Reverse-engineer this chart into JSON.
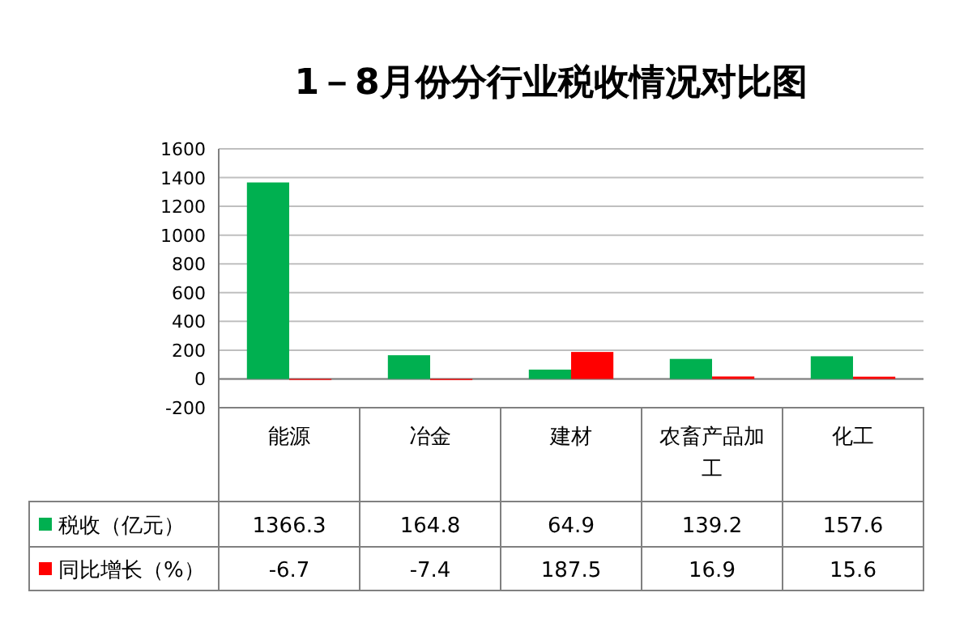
{
  "chart_data": {
    "type": "bar",
    "title": "1－8月份分行业税收情况对比图",
    "categories": [
      "能源",
      "冶金",
      "建材",
      "农畜产品加工",
      "化工"
    ],
    "series": [
      {
        "name": "税收（亿元）",
        "color": "#00b050",
        "values": [
          1366.3,
          164.8,
          64.9,
          139.2,
          157.6
        ]
      },
      {
        "name": "同比增长（%）",
        "color": "#ff0000",
        "values": [
          -6.7,
          -7.4,
          187.5,
          16.9,
          15.6
        ]
      }
    ],
    "ylim": [
      -200,
      1600
    ],
    "yticks": [
      -200,
      0,
      200,
      400,
      600,
      800,
      1000,
      1200,
      1400,
      1600
    ],
    "grid": "y",
    "data_labels": true,
    "legend": "bottom"
  }
}
